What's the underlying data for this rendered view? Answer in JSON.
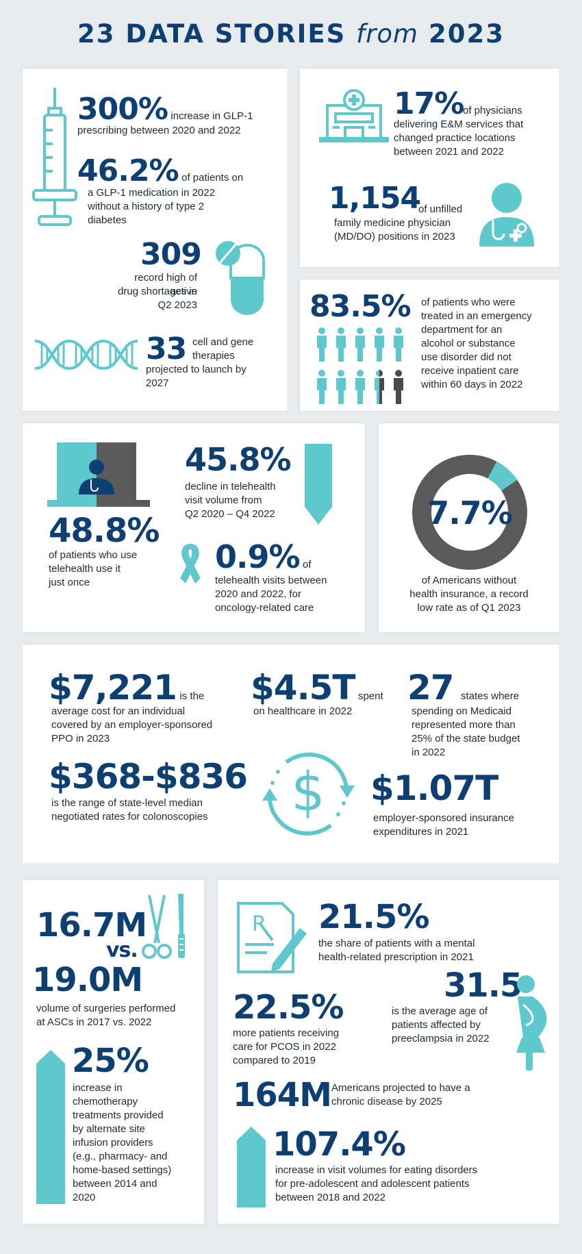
{
  "title": {
    "pre": "23 DATA STORIES",
    "mid": "from",
    "year": "2023"
  },
  "colors": {
    "navy": "#0d3f73",
    "teal": "#5ec8cc",
    "gray": "#5a5a5a"
  },
  "card1": {
    "glp_num": "300%",
    "glp_text1": "increase in GLP-1",
    "glp_text2": "prescribing between 2020 and 2022",
    "nodiab_num": "46.2%",
    "nodiab_text1": "of patients on",
    "nodiab_text2": "a GLP-1 medication in 2022",
    "nodiab_text3": "without a history of type 2",
    "nodiab_text4": "diabetes",
    "short_num": "309",
    "short_text1": "record high of active",
    "short_text2": "drug shortages in",
    "short_text3": "Q2 2023",
    "gene_num": "33",
    "gene_text1": "cell and gene",
    "gene_text2": "therapies",
    "gene_text3": "projected to launch by",
    "gene_text4": "2027"
  },
  "card2": {
    "phys_num": "17%",
    "phys_text1": "of physicians",
    "phys_text2": "delivering E&M services that",
    "phys_text3": "changed practice locations",
    "phys_text4": "between 2021 and 2022",
    "fm_num": "1,154",
    "fm_text1": "of unfilled",
    "fm_text2": "family medicine physician",
    "fm_text3": "(MD/DO) positions in 2023"
  },
  "card3": {
    "num": "83.5%",
    "lines": [
      "of patients who were",
      "treated in an emergency",
      "department for an",
      "alcohol or substance",
      "use disorder did not",
      "receive inpatient care",
      "within 60 days in 2022"
    ],
    "fraction_shown": 0.835
  },
  "card4": {
    "once_num": "48.8%",
    "once_text1": "of patients who use",
    "once_text2": "telehealth use it",
    "once_text3": "just once",
    "decl_num": "45.8%",
    "decl_text1": "decline in telehealth",
    "decl_text2": "visit volume from",
    "decl_text3": "Q2 2020 – Q4 2022",
    "onc_num": "0.9%",
    "onc_of": "of",
    "onc_text1": "telehealth visits between",
    "onc_text2": "2020 and 2022, for",
    "onc_text3": "oncology-related care"
  },
  "card5": {
    "num": "7.7%",
    "value": 0.077,
    "text1": "of Americans without",
    "text2": "health insurance, a record",
    "text3": "low rate as of Q1 2023"
  },
  "card6": {
    "ppo_num": "$7,221",
    "ppo_text0": "is the",
    "ppo_text1": "average cost for an individual",
    "ppo_text2": "covered by an employer-sponsored",
    "ppo_text3": "PPO in 2023",
    "spent_num": "$4.5T",
    "spent_text0": "spent",
    "spent_text1": "on healthcare in 2022",
    "states_num": "27",
    "states_text0": "states where",
    "states_text1": "spending on Medicaid",
    "states_text2": "represented more than",
    "states_text3": "25% of the state budget",
    "states_text4": "in 2022",
    "colo_num": "$368-$836",
    "colo_text1": "is the range of state-level median",
    "colo_text2": "negotiated rates for colonoscopies",
    "esi_num": "$1.07T",
    "esi_text1": "employer-sponsored insurance",
    "esi_text2": "expenditures in 2021"
  },
  "card7": {
    "surg_a": "16.7M",
    "vs": "vs.",
    "surg_b": "19.0M",
    "surg_text1": "volume of surgeries performed",
    "surg_text2": "at ASCs in 2017 vs. 2022",
    "chemo_num": "25%",
    "chemo_lines": [
      "increase in",
      "chemotherapy",
      "treatments provided",
      "by alternate site",
      "infusion providers",
      "(e.g., pharmacy- and",
      "home-based settings)",
      "between 2014 and",
      "2020"
    ]
  },
  "card8": {
    "mh_num": "21.5%",
    "mh_text1": "the share of patients with a mental",
    "mh_text2": "health-related prescription in 2021",
    "pre_num": "31.5",
    "pre_text1": "is the average age of",
    "pre_text2": "patients affected by",
    "pre_text3": "preeclampsia in 2022",
    "pcos_num": "22.5%",
    "pcos_text1": "more patients receiving",
    "pcos_text2": "care for PCOS in 2022",
    "pcos_text3": "compared to 2019",
    "chronic_num": "164M",
    "chronic_text1": "Americans projected to have a",
    "chronic_text2": "chronic disease by 2025",
    "eat_num": "107.4%",
    "eat_text1": "increase in visit volumes for eating disorders",
    "eat_text2": "for pre-adolescent and adolescent patients",
    "eat_text3": "between 2018 and 2022"
  }
}
